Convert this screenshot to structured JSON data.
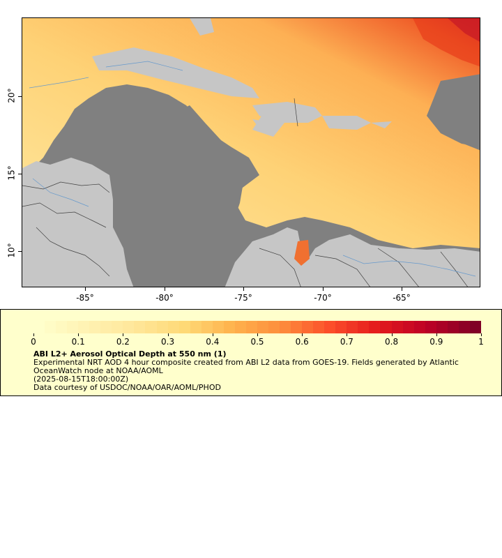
{
  "map": {
    "y_axis_labels": [
      "20°",
      "15°",
      "10°"
    ],
    "x_axis_labels": [
      "-85°",
      "-80°",
      "-75°",
      "-70°",
      "-65°"
    ],
    "colors": {
      "land": "#c6c6c6",
      "no_data": "#808080",
      "borders": "#404040",
      "rivers": "#6699cc"
    }
  },
  "legend": {
    "colorbar_ticks": [
      "0",
      "0.1",
      "0.2",
      "0.3",
      "0.4",
      "0.5",
      "0.6",
      "0.7",
      "0.8",
      "0.9",
      "1"
    ],
    "colorbar_colors": [
      "#ffffcc",
      "#fff2b2",
      "#ffe699",
      "#fed976",
      "#feb24c",
      "#fd8d3c",
      "#fc4e2a",
      "#e31a1c",
      "#bd0026",
      "#800026"
    ],
    "title": "ABI L2+ Aerosol Optical Depth at 550 nm (1)",
    "description": "Experimental NRT AOD 4 hour composite created from ABI L2 data from GOES-19. Fields generated by Atlantic OceanWatch node at NOAA/AOML",
    "timestamp": "(2025-08-15T18:00:00Z)",
    "credit": "Data courtesy of USDOC/NOAA/OAR/AOML/PHOD"
  }
}
